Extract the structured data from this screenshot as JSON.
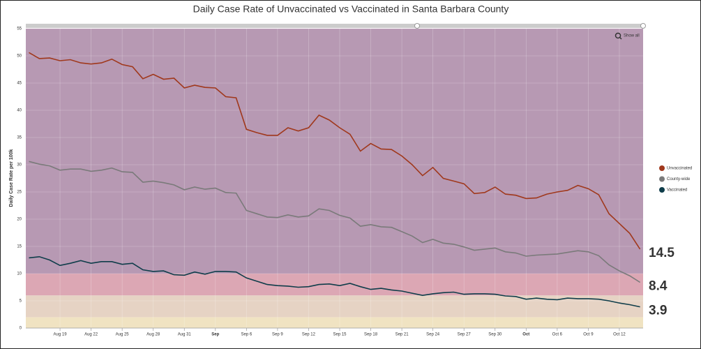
{
  "chart_data": {
    "type": "line",
    "title": "Daily Case Rate of Unvaccinated vs Vaccinated in Santa Barbara County",
    "y_label": "Daily Case Rate per 100k",
    "reset_button": "Show all",
    "categories": [
      null,
      null,
      null,
      "Aug 19",
      null,
      null,
      "Aug 22",
      null,
      null,
      "Aug 25",
      null,
      null,
      "Aug 28",
      null,
      null,
      "Aug 31",
      null,
      null,
      "Sep",
      null,
      null,
      "Sep 6",
      null,
      null,
      "Sep 9",
      null,
      null,
      "Sep 12",
      null,
      null,
      "Sep 15",
      null,
      null,
      "Sep 18",
      null,
      null,
      "Sep 21",
      null,
      null,
      "Sep 24",
      null,
      null,
      "Sep 27",
      null,
      null,
      "Sep 30",
      null,
      null,
      "Oct",
      null,
      null,
      "Oct 6",
      null,
      null,
      "Oct 9",
      null,
      null,
      "Oct 12",
      null,
      null
    ],
    "series": [
      {
        "name": "Unvaccinated",
        "color": "#a0381c",
        "label_color": "#a0381c",
        "values": [
          50.6,
          49.5,
          49.6,
          49.1,
          49.3,
          48.7,
          48.5,
          48.7,
          49.4,
          48.4,
          48.0,
          45.8,
          46.6,
          45.7,
          45.9,
          44.1,
          44.6,
          44.2,
          44.1,
          42.5,
          42.3,
          36.5,
          35.9,
          35.4,
          35.4,
          36.8,
          36.2,
          36.8,
          39.1,
          38.2,
          36.8,
          35.6,
          32.5,
          33.9,
          32.9,
          32.8,
          31.6,
          30.0,
          28.0,
          29.5,
          27.5,
          27.0,
          26.5,
          24.7,
          24.9,
          25.9,
          24.6,
          24.4,
          23.8,
          23.9,
          24.6,
          25.0,
          25.3,
          26.2,
          25.6,
          24.5,
          21.0,
          19.2,
          17.4,
          14.5
        ]
      },
      {
        "name": "County-wide",
        "color": "#7a7a7a",
        "label_color": "#8a8a8a",
        "values": [
          30.6,
          30.1,
          29.8,
          29.0,
          29.2,
          29.2,
          28.8,
          29.0,
          29.4,
          28.7,
          28.6,
          26.8,
          27.0,
          26.7,
          26.3,
          25.4,
          25.9,
          25.5,
          25.7,
          24.9,
          24.8,
          21.6,
          21.0,
          20.4,
          20.3,
          20.8,
          20.4,
          20.6,
          21.9,
          21.6,
          20.7,
          20.2,
          18.7,
          19.0,
          18.6,
          18.5,
          17.7,
          16.9,
          15.7,
          16.3,
          15.6,
          15.4,
          14.9,
          14.3,
          14.5,
          14.7,
          14.0,
          13.8,
          13.2,
          13.4,
          13.5,
          13.6,
          13.9,
          14.2,
          14.0,
          13.3,
          11.6,
          10.5,
          9.6,
          8.4
        ]
      },
      {
        "name": "Vaccinated",
        "color": "#0f3d4a",
        "label_color": "#0f3d4a",
        "values": [
          12.9,
          13.1,
          12.5,
          11.5,
          11.9,
          12.4,
          11.9,
          12.2,
          12.2,
          11.7,
          11.9,
          10.7,
          10.4,
          10.5,
          9.8,
          9.7,
          10.3,
          9.9,
          10.4,
          10.4,
          10.3,
          9.2,
          8.6,
          8.0,
          7.8,
          7.7,
          7.5,
          7.6,
          8.0,
          8.1,
          7.8,
          8.2,
          7.6,
          7.1,
          7.3,
          7.0,
          6.8,
          6.4,
          6.0,
          6.3,
          6.5,
          6.6,
          6.2,
          6.3,
          6.3,
          6.2,
          5.9,
          5.8,
          5.3,
          5.5,
          5.3,
          5.2,
          5.5,
          5.4,
          5.4,
          5.3,
          5.0,
          4.6,
          4.3,
          3.9
        ]
      }
    ],
    "bands": [
      {
        "from": 0,
        "to": 2,
        "color": "#f0e3c2"
      },
      {
        "from": 2,
        "to": 6,
        "color": "#e6d3c4"
      },
      {
        "from": 6,
        "to": 10,
        "color": "#dca7b4"
      },
      {
        "from": 10,
        "to": 55,
        "color": "#b799b3"
      }
    ],
    "ylim": [
      0,
      55
    ],
    "yticks": [
      0,
      5,
      10,
      15,
      20,
      25,
      30,
      35,
      40,
      45,
      50,
      55
    ],
    "grid": true,
    "legend": "right"
  }
}
